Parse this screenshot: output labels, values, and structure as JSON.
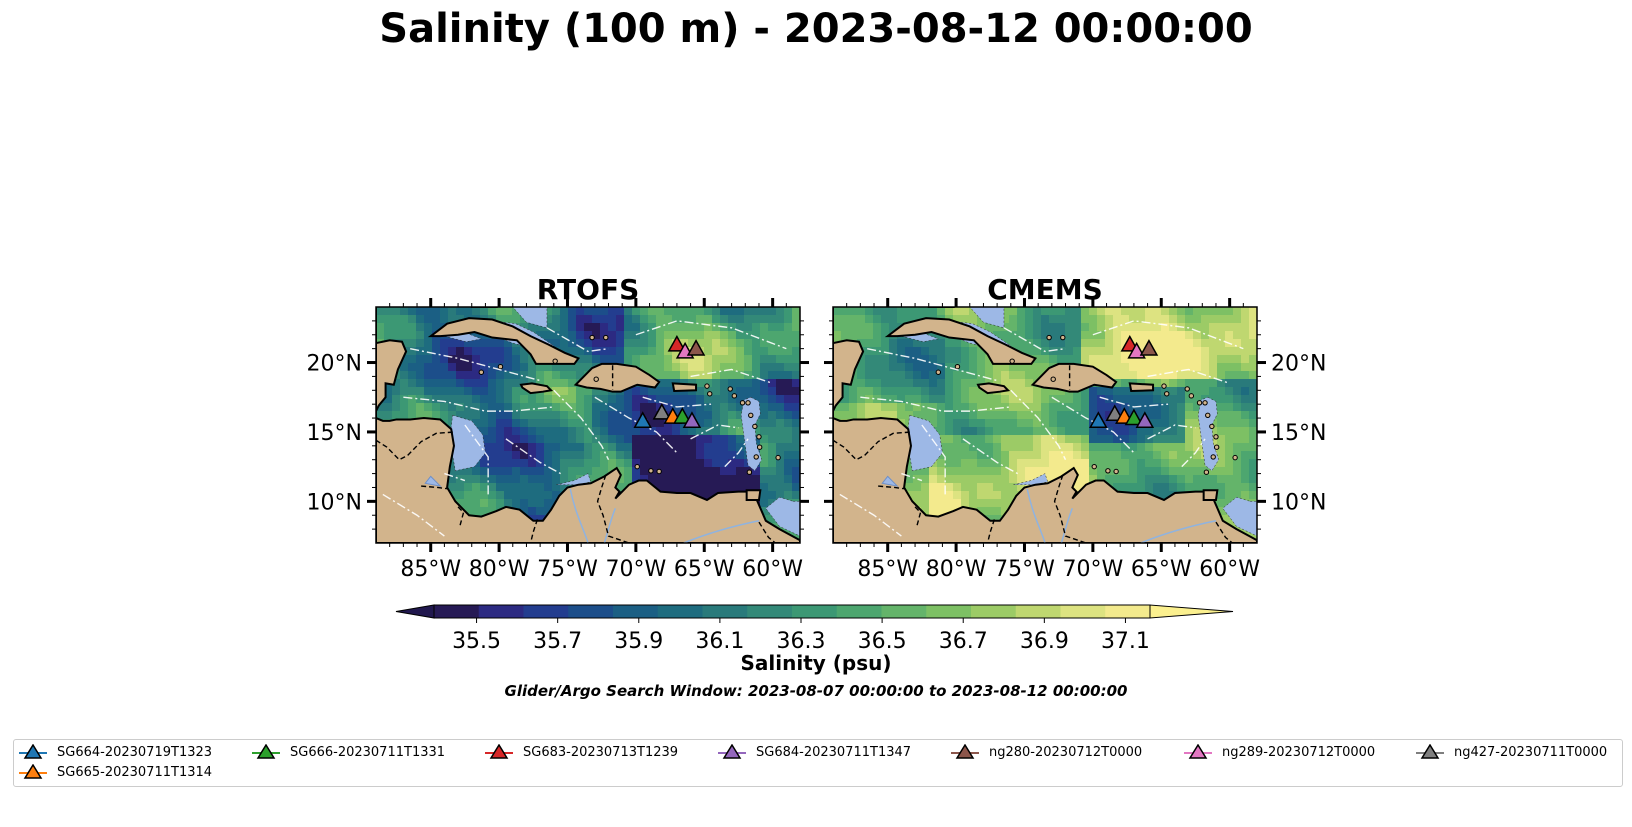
{
  "figure": {
    "title": "Salinity (100 m) - 2023-08-12 00:00:00",
    "search_window": "Glider/Argo Search Window: 2023-08-07 00:00:00 to 2023-08-12 00:00:00"
  },
  "colors": {
    "land": "#d2b48c",
    "shallow": "#9db8e6",
    "colormap": [
      "#261a55",
      "#2c2a82",
      "#233d8f",
      "#1c4e8a",
      "#1b5f84",
      "#1e6c7f",
      "#297a7b",
      "#338978",
      "#3c9874",
      "#4da66f",
      "#64b46a",
      "#7dc064",
      "#9ccb66",
      "#bfd770",
      "#dde381",
      "#f3ea8d"
    ]
  },
  "chart_data": {
    "type": "heatmap",
    "panels": [
      {
        "title": "RTOFS",
        "x_ticks": [
          "85°W",
          "80°W",
          "75°W",
          "70°W",
          "65°W",
          "60°W"
        ],
        "y_ticks": [
          "20°N",
          "15°N",
          "10°N"
        ],
        "y_tick_side": "left",
        "lon_range": [
          -89,
          -58
        ],
        "lat_range": [
          7,
          24
        ],
        "markers": [
          {
            "id": "SG664-20230719T1323",
            "lon": -69.5,
            "lat": 15.8
          },
          {
            "id": "ng427-20230711T0000",
            "lon": -68.1,
            "lat": 16.4
          },
          {
            "id": "SG665-20230711T1314",
            "lon": -67.3,
            "lat": 16.1
          },
          {
            "id": "SG666-20230711T1331",
            "lon": -66.6,
            "lat": 16.1
          },
          {
            "id": "SG684-20230711T1347",
            "lon": -65.9,
            "lat": 15.8
          },
          {
            "id": "SG683-20230713T1239",
            "lon": -67.0,
            "lat": 21.3
          },
          {
            "id": "ng289-20230712T0000",
            "lon": -66.4,
            "lat": 20.8
          },
          {
            "id": "ng280-20230712T0000",
            "lon": -65.6,
            "lat": 21.0
          }
        ]
      },
      {
        "title": "CMEMS",
        "x_ticks": [
          "85°W",
          "80°W",
          "75°W",
          "70°W",
          "65°W",
          "60°W"
        ],
        "y_ticks": [
          "20°N",
          "15°N",
          "10°N"
        ],
        "y_tick_side": "right",
        "lon_range": [
          -89,
          -58
        ],
        "lat_range": [
          7,
          24
        ],
        "markers": [
          {
            "id": "SG664-20230719T1323",
            "lon": -69.6,
            "lat": 15.8
          },
          {
            "id": "ng427-20230711T0000",
            "lon": -68.4,
            "lat": 16.3
          },
          {
            "id": "SG665-20230711T1314",
            "lon": -67.7,
            "lat": 16.1
          },
          {
            "id": "SG666-20230711T1331",
            "lon": -67.0,
            "lat": 16.0
          },
          {
            "id": "SG684-20230711T1347",
            "lon": -66.2,
            "lat": 15.8
          },
          {
            "id": "SG683-20230713T1239",
            "lon": -67.3,
            "lat": 21.3
          },
          {
            "id": "ng289-20230712T0000",
            "lon": -66.8,
            "lat": 20.8
          },
          {
            "id": "ng280-20230712T0000",
            "lon": -65.9,
            "lat": 21.0
          }
        ]
      }
    ],
    "colorbar": {
      "label": "Salinity (psu)",
      "ticks": [
        "35.5",
        "35.7",
        "35.9",
        "36.1",
        "36.3",
        "36.5",
        "36.7",
        "36.9",
        "37.1"
      ],
      "min": 35.4,
      "max": 37.2
    },
    "legend": {
      "placement": "bottom",
      "items": [
        {
          "label": "SG664-20230719T1323",
          "color": "#1f77b4"
        },
        {
          "label": "SG665-20230711T1314",
          "color": "#ff7f0e"
        },
        {
          "label": "SG666-20230711T1331",
          "color": "#2ca02c"
        },
        {
          "label": "SG683-20230713T1239",
          "color": "#d62728"
        },
        {
          "label": "SG684-20230711T1347",
          "color": "#9467bd"
        },
        {
          "label": "ng280-20230712T0000",
          "color": "#8c564b"
        },
        {
          "label": "ng289-20230712T0000",
          "color": "#e377c2"
        },
        {
          "label": "ng427-20230711T0000",
          "color": "#7f7f7f"
        }
      ]
    }
  }
}
